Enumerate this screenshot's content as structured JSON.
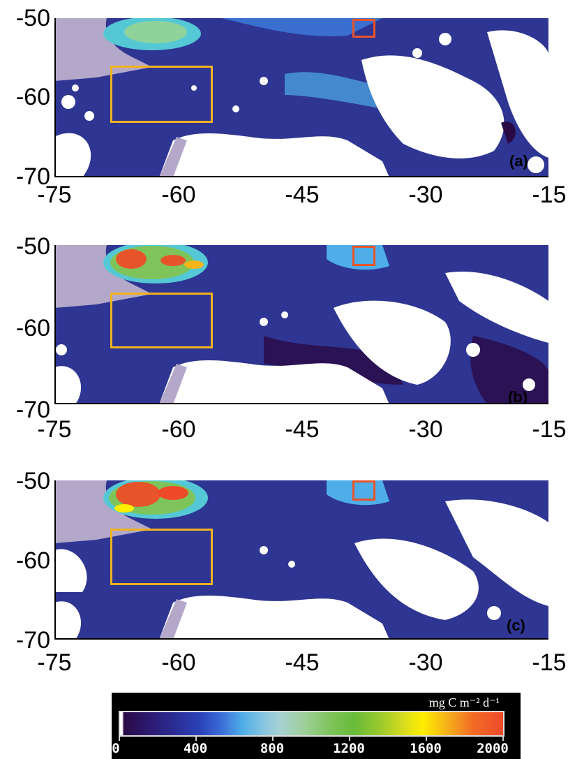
{
  "panels": [
    {
      "id": "a",
      "label": "(a)"
    },
    {
      "id": "b",
      "label": "(b)"
    },
    {
      "id": "c",
      "label": "(c)"
    }
  ],
  "axes": {
    "y_ticks": [
      "-50",
      "-60",
      "-70"
    ],
    "x_ticks": [
      "-75",
      "-60",
      "-45",
      "-30",
      "-15"
    ],
    "lat_range": [
      -70,
      -50
    ],
    "lon_range": [
      -75,
      -15
    ]
  },
  "colorbar": {
    "unit": "mg C m⁻² d⁻¹",
    "ticks": [
      "0",
      "400",
      "800",
      "1200",
      "1600",
      "2000"
    ],
    "range": [
      0,
      2000
    ]
  },
  "colors": {
    "ocean_low": "#2e3592",
    "land": "#b3a8c9",
    "cloud_mask": "#ffffff",
    "box_yellow": "#f2b21e",
    "box_red": "#e8542a"
  }
}
